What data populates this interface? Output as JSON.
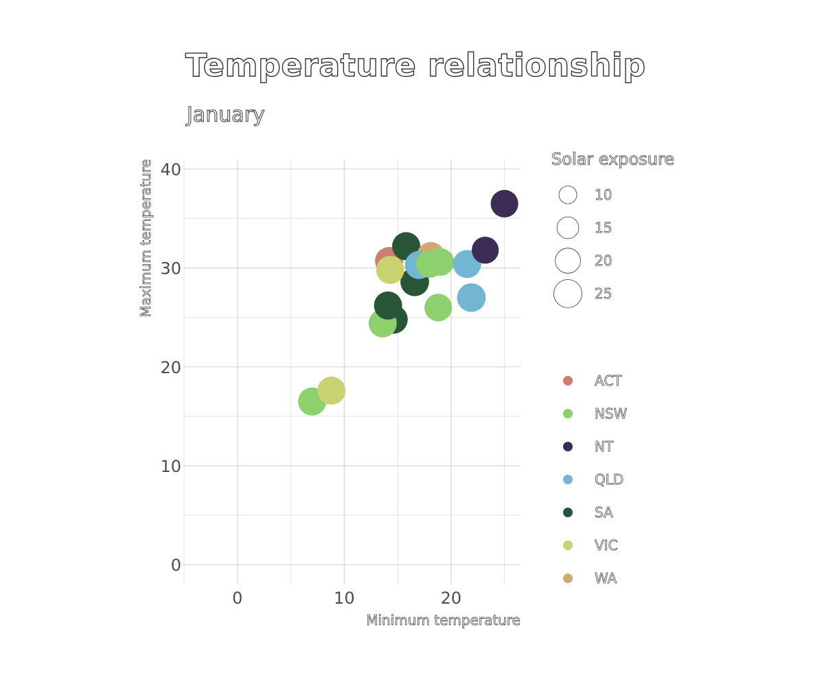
{
  "chart_data": {
    "type": "scatter",
    "title": "Temperature relationship",
    "subtitle": "January",
    "xlabel": "Minimum temperature",
    "ylabel": "Maximum temperature",
    "xlim": [
      -5,
      26.5
    ],
    "ylim": [
      -2,
      41
    ],
    "x_ticks": [
      0,
      10,
      20
    ],
    "y_ticks": [
      0,
      10,
      20,
      30,
      40
    ],
    "grid": true,
    "size_legend": {
      "title": "Solar exposure",
      "values": [
        10,
        15,
        20,
        25
      ]
    },
    "color_legend": {
      "entries": [
        {
          "name": "ACT",
          "color": "#cd7e6e"
        },
        {
          "name": "NSW",
          "color": "#8dd16e"
        },
        {
          "name": "NT",
          "color": "#3c2d55"
        },
        {
          "name": "QLD",
          "color": "#73b6d2"
        },
        {
          "name": "SA",
          "color": "#285438"
        },
        {
          "name": "VIC",
          "color": "#c8d271"
        },
        {
          "name": "WA",
          "color": "#d4a86e"
        }
      ]
    },
    "points": [
      {
        "state": "NSW",
        "x": 7.0,
        "y": 16.5,
        "solar": 25
      },
      {
        "state": "VIC",
        "x": 8.8,
        "y": 17.6,
        "solar": 25
      },
      {
        "state": "SA",
        "x": 14.6,
        "y": 24.8,
        "solar": 26
      },
      {
        "state": "NSW",
        "x": 13.6,
        "y": 24.4,
        "solar": 25
      },
      {
        "state": "SA",
        "x": 14.1,
        "y": 26.2,
        "solar": 25
      },
      {
        "state": "SA",
        "x": 16.6,
        "y": 28.6,
        "solar": 26
      },
      {
        "state": "ACT",
        "x": 14.2,
        "y": 30.7,
        "solar": 25
      },
      {
        "state": "SA",
        "x": 15.8,
        "y": 32.2,
        "solar": 25
      },
      {
        "state": "WA",
        "x": 18.1,
        "y": 31.2,
        "solar": 25
      },
      {
        "state": "VIC",
        "x": 14.3,
        "y": 29.8,
        "solar": 25
      },
      {
        "state": "QLD",
        "x": 17.0,
        "y": 30.3,
        "solar": 25
      },
      {
        "state": "NSW",
        "x": 18.0,
        "y": 30.4,
        "solar": 24
      },
      {
        "state": "NSW",
        "x": 19.0,
        "y": 30.6,
        "solar": 24
      },
      {
        "state": "NSW",
        "x": 18.8,
        "y": 26.0,
        "solar": 24
      },
      {
        "state": "QLD",
        "x": 21.5,
        "y": 30.4,
        "solar": 25
      },
      {
        "state": "QLD",
        "x": 21.9,
        "y": 27.0,
        "solar": 26
      },
      {
        "state": "NT",
        "x": 23.2,
        "y": 31.8,
        "solar": 23
      },
      {
        "state": "NT",
        "x": 25.0,
        "y": 36.5,
        "solar": 24
      }
    ]
  }
}
